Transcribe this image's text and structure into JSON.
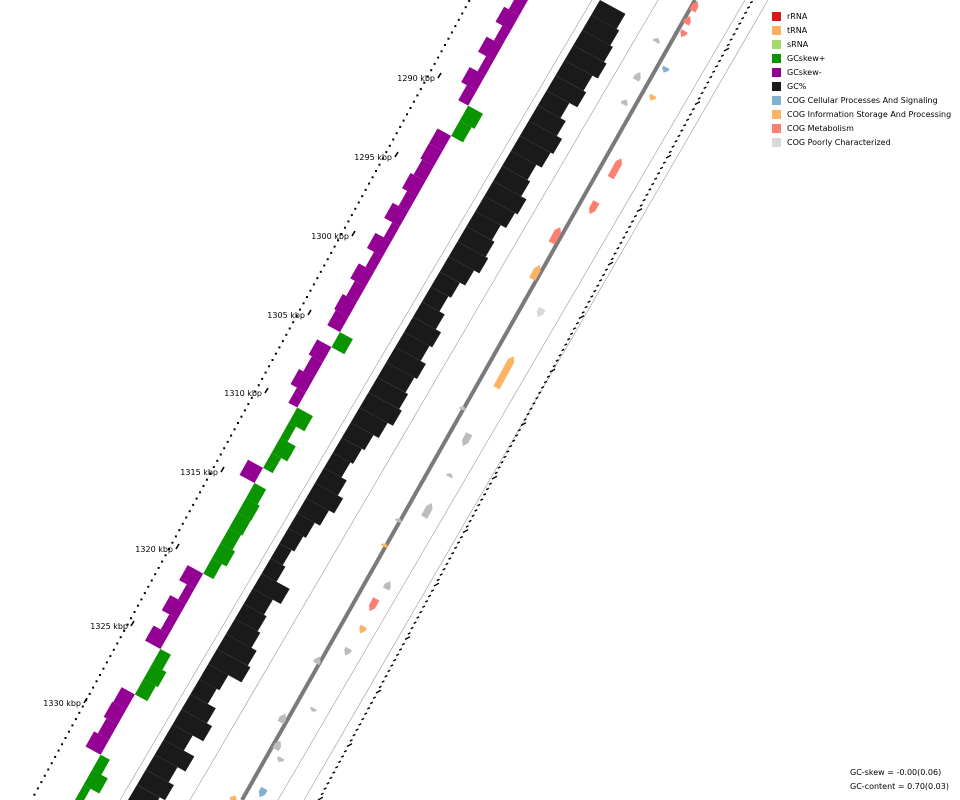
{
  "legend": [
    {
      "name": "rRNA",
      "color": "#d7191c"
    },
    {
      "name": "tRNA",
      "color": "#fdae61"
    },
    {
      "name": "sRNA",
      "color": "#a6d96a"
    },
    {
      "name": "GCskew+",
      "color": "#0a9400"
    },
    {
      "name": "GCskew-",
      "color": "#940094"
    },
    {
      "name": "GC%",
      "color": "#1a1a1a"
    },
    {
      "name": "COG Cellular Processes And Signaling",
      "color": "#80b1d3"
    },
    {
      "name": "COG Information Storage And Processing",
      "color": "#fdb462"
    },
    {
      "name": "COG Metabolism",
      "color": "#fb8072"
    },
    {
      "name": "COG Poorly Characterized",
      "color": "#d9d9d9"
    }
  ],
  "position_ticks": [
    "1290 kbp",
    "1295 kbp",
    "1300 kbp",
    "1305 kbp",
    "1310 kbp",
    "1315 kbp",
    "1320 kbp",
    "1325 kbp",
    "1330 kbp"
  ],
  "stats": {
    "gc_skew": "GC-skew = -0.00(0.06)",
    "gc_content": "GC-content = 0.70(0.03)"
  },
  "colors": {
    "gene_default": "#bdbdbd",
    "backbone": "#7a7a7a",
    "ring_line": "#9a9a9a"
  },
  "gc_skew_profile": [
    1,
    1,
    1,
    -1,
    -1,
    -1,
    -1,
    1,
    1,
    1,
    -1,
    -1,
    -1,
    -1,
    -1,
    1,
    1,
    1,
    1,
    1,
    1,
    -1,
    1,
    1,
    1,
    1,
    -1,
    -1,
    -1,
    -1,
    1,
    -1,
    -1,
    -1,
    -1,
    -1,
    -1,
    -1,
    -1,
    -1,
    -1,
    -1,
    -1,
    -1,
    1,
    1,
    -1,
    -1,
    -1,
    -1,
    -1,
    -1,
    -1
  ],
  "gc_content_profile": [
    0.6,
    0.8,
    0.6,
    0.9,
    0.5,
    0.9,
    0.7,
    0.4,
    0.5,
    1,
    0.9,
    0.7,
    0.6,
    0.5,
    0.8,
    0.3,
    0.2,
    0.3,
    0.4,
    0.6,
    0.8,
    0.6,
    0.4,
    0.5,
    0.6,
    0.8,
    1,
    0.9,
    0.8,
    0.9,
    0.7,
    0.8,
    0.6,
    0.4,
    0.5,
    0.7,
    0.9,
    0.8,
    0.7,
    0.9,
    1,
    0.8,
    0.7,
    0.9,
    1,
    0.8,
    0.6,
    0.9,
    0.8,
    1,
    0.9,
    0.8,
    0.7
  ],
  "genes": [
    {
      "cog": "COG Metabolism",
      "strand": "+"
    },
    {
      "cog": "COG Metabolism",
      "strand": "+"
    },
    {
      "cog": "COG Metabolism",
      "strand": "-"
    },
    {
      "cog": "",
      "strand": "+"
    },
    {
      "cog": "COG Cellular Processes And Signaling",
      "strand": "-"
    },
    {
      "cog": "",
      "strand": "+"
    },
    {
      "cog": "COG Information Storage And Processing",
      "strand": "-"
    },
    {
      "cog": "",
      "strand": "+"
    },
    {
      "cog": "COG Metabolism",
      "strand": "+"
    },
    {
      "cog": "COG Metabolism",
      "strand": "-"
    },
    {
      "cog": "COG Metabolism",
      "strand": "+"
    },
    {
      "cog": "COG Information Storage And Processing",
      "strand": "+"
    },
    {
      "cog": "COG Poorly Characterized",
      "strand": "-"
    },
    {
      "cog": "COG Information Storage And Processing",
      "strand": "+"
    },
    {
      "cog": "",
      "strand": "+"
    },
    {
      "cog": "",
      "strand": "-"
    },
    {
      "cog": "",
      "strand": "+"
    },
    {
      "cog": "",
      "strand": "+"
    },
    {
      "cog": "",
      "strand": "+"
    },
    {
      "cog": "COG Information Storage And Processing",
      "strand": "+"
    },
    {
      "cog": "",
      "strand": "+"
    },
    {
      "cog": "COG Metabolism",
      "strand": "-"
    },
    {
      "cog": "COG Information Storage And Processing",
      "strand": "-"
    },
    {
      "cog": "",
      "strand": "-"
    },
    {
      "cog": "",
      "strand": "+"
    },
    {
      "cog": "",
      "strand": "-"
    },
    {
      "cog": "",
      "strand": "+"
    },
    {
      "cog": "",
      "strand": "+"
    },
    {
      "cog": "",
      "strand": "-"
    },
    {
      "cog": "COG Cellular Processes And Signaling",
      "strand": "-"
    },
    {
      "cog": "COG Information Storage And Processing",
      "strand": "+"
    }
  ]
}
